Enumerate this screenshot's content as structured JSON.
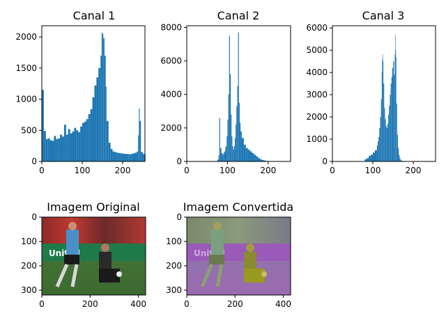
{
  "chart_data": [
    {
      "type": "bar",
      "title": "Canal 1",
      "xlabel": "",
      "ylabel": "",
      "xlim": [
        0,
        255
      ],
      "ylim": [
        0,
        2180
      ],
      "xticks": [
        0,
        100,
        200
      ],
      "yticks": [
        0,
        500,
        1000,
        1500,
        2000
      ],
      "color": "#1f77b4",
      "x": [
        0,
        5,
        10,
        15,
        20,
        25,
        30,
        35,
        40,
        45,
        50,
        55,
        60,
        65,
        70,
        75,
        80,
        85,
        90,
        95,
        100,
        105,
        110,
        115,
        120,
        125,
        130,
        135,
        140,
        145,
        148,
        150,
        152,
        155,
        158,
        160,
        165,
        170,
        175,
        180,
        185,
        190,
        195,
        200,
        205,
        210,
        215,
        220,
        225,
        230,
        235,
        238,
        240,
        242,
        245,
        250,
        255
      ],
      "values": [
        1150,
        490,
        360,
        370,
        340,
        330,
        410,
        360,
        370,
        430,
        400,
        590,
        430,
        520,
        450,
        480,
        540,
        500,
        470,
        560,
        620,
        640,
        680,
        760,
        840,
        1030,
        1220,
        1350,
        1500,
        1700,
        2070,
        2050,
        1980,
        1700,
        1200,
        650,
        300,
        200,
        160,
        150,
        140,
        135,
        130,
        125,
        120,
        120,
        115,
        120,
        130,
        140,
        160,
        420,
        850,
        650,
        150,
        120,
        110
      ]
    },
    {
      "type": "bar",
      "title": "Canal 2",
      "xlabel": "",
      "ylabel": "",
      "xlim": [
        0,
        255
      ],
      "ylim": [
        0,
        8100
      ],
      "xticks": [
        0,
        100,
        200
      ],
      "yticks": [
        0,
        2000,
        4000,
        6000,
        8000
      ],
      "color": "#1f77b4",
      "x": [
        75,
        78,
        80,
        82,
        85,
        88,
        90,
        92,
        95,
        98,
        100,
        102,
        104,
        106,
        108,
        110,
        112,
        114,
        116,
        118,
        120,
        122,
        124,
        126,
        128,
        130,
        132,
        135,
        140,
        145,
        150,
        155,
        160,
        165,
        170,
        175,
        180,
        185,
        190,
        195,
        200,
        205
      ],
      "values": [
        100,
        350,
        2600,
        800,
        500,
        400,
        500,
        600,
        900,
        1500,
        2500,
        4000,
        7500,
        5200,
        2800,
        1500,
        900,
        700,
        900,
        1400,
        2200,
        3300,
        4500,
        7700,
        3500,
        2300,
        1800,
        1400,
        1000,
        800,
        700,
        600,
        500,
        400,
        300,
        200,
        120,
        80,
        50,
        30,
        15,
        5
      ]
    },
    {
      "type": "bar",
      "title": "Canal 3",
      "xlabel": "",
      "ylabel": "",
      "xlim": [
        0,
        255
      ],
      "ylim": [
        0,
        6100
      ],
      "xticks": [
        0,
        100,
        200
      ],
      "yticks": [
        0,
        1000,
        2000,
        3000,
        4000,
        5000,
        6000
      ],
      "color": "#1f77b4",
      "x": [
        80,
        85,
        90,
        95,
        100,
        105,
        110,
        112,
        114,
        116,
        118,
        120,
        122,
        123,
        124,
        125,
        126,
        128,
        130,
        132,
        134,
        136,
        138,
        140,
        142,
        144,
        146,
        148,
        150,
        152,
        154,
        155,
        156,
        157,
        158,
        160,
        162,
        164,
        166,
        168,
        170,
        175
      ],
      "values": [
        100,
        150,
        250,
        300,
        400,
        500,
        700,
        900,
        1100,
        1500,
        2000,
        2800,
        4000,
        4600,
        4800,
        4500,
        3500,
        2400,
        1900,
        1600,
        1500,
        1700,
        2100,
        2500,
        3000,
        3500,
        3800,
        4200,
        4500,
        3900,
        4800,
        5700,
        5000,
        4700,
        2600,
        1200,
        600,
        300,
        150,
        70,
        30,
        10
      ]
    }
  ],
  "images": [
    {
      "title": "Imagem Original",
      "xlim": [
        0,
        430
      ],
      "ylim": [
        320,
        0
      ],
      "xticks": [
        0,
        200,
        400
      ],
      "yticks": [
        0,
        100,
        200,
        300
      ],
      "banner_text": "United"
    },
    {
      "title": "Imagem Convertida",
      "xlim": [
        0,
        430
      ],
      "ylim": [
        320,
        0
      ],
      "xticks": [
        0,
        200,
        400
      ],
      "yticks": [
        0,
        100,
        200,
        300
      ],
      "banner_text": "United"
    }
  ]
}
